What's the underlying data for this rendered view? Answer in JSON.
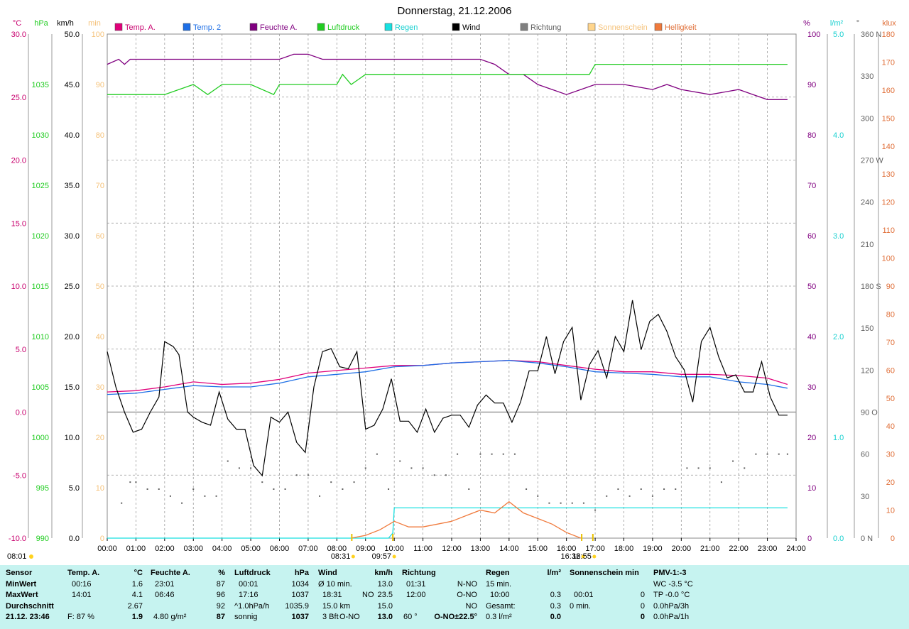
{
  "title": "Donnerstag, 21.12.2006",
  "legend": [
    {
      "label": "Temp. A.",
      "color": "#e0007a",
      "text_color": "#c8006e"
    },
    {
      "label": "Temp. 2",
      "color": "#1e6fe6",
      "text_color": "#1e6fe6"
    },
    {
      "label": "Feuchte A.",
      "color": "#800080",
      "text_color": "#800080"
    },
    {
      "label": "Luftdruck",
      "color": "#22cc22",
      "text_color": "#22cc22"
    },
    {
      "label": "Regen",
      "color": "#18e0e0",
      "text_color": "#18d0d0"
    },
    {
      "label": "Wind",
      "color": "#000000",
      "text_color": "#000000"
    },
    {
      "label": "Richtung",
      "color": "#808080",
      "text_color": "#606060"
    },
    {
      "label": "Sonnenschein",
      "color": "#ffd58c",
      "text_color": "#f5c27a"
    },
    {
      "label": "Helligkeit",
      "color": "#f07a3c",
      "text_color": "#e0703a"
    }
  ],
  "axes_left": [
    {
      "unit": "°C",
      "color": "#c8006e",
      "ticks": [
        "30.0",
        "25.0",
        "20.0",
        "15.0",
        "10.0",
        "5.0",
        "0.0",
        "-5.0",
        "-10.0"
      ]
    },
    {
      "unit": "hPa",
      "color": "#22cc22",
      "ticks": [
        "1035",
        "1030",
        "1025",
        "1020",
        "1015",
        "1010",
        "1005",
        "1000",
        "995",
        "990"
      ]
    },
    {
      "unit": "km/h",
      "color": "#000000",
      "ticks": [
        "50.0",
        "45.0",
        "40.0",
        "35.0",
        "30.0",
        "25.0",
        "20.0",
        "15.0",
        "10.0",
        "5.0",
        "0.0"
      ]
    },
    {
      "unit": "min",
      "color": "#f5c27a",
      "ticks": [
        "100",
        "90",
        "80",
        "70",
        "60",
        "50",
        "40",
        "30",
        "20",
        "10",
        "0"
      ]
    }
  ],
  "axes_right": [
    {
      "unit": "%",
      "color": "#800080",
      "ticks": [
        "100",
        "90",
        "80",
        "70",
        "60",
        "50",
        "40",
        "30",
        "20",
        "10",
        "0"
      ]
    },
    {
      "unit": "l/m²",
      "color": "#18d0d0",
      "ticks": [
        "5.0",
        "4.0",
        "3.0",
        "2.0",
        "1.0",
        "0.0"
      ]
    },
    {
      "unit": "°",
      "color": "#606060",
      "ticks": [
        "360 N",
        "330",
        "300",
        "270 W",
        "240",
        "210",
        "180 S",
        "150",
        "120",
        "90 O",
        "60",
        "30",
        "0 N"
      ]
    },
    {
      "unit": "klux",
      "color": "#e0703a",
      "ticks": [
        "180",
        "170",
        "160",
        "150",
        "140",
        "130",
        "120",
        "110",
        "100",
        "90",
        "80",
        "70",
        "60",
        "50",
        "40",
        "30",
        "20",
        "10",
        "0"
      ]
    }
  ],
  "x_ticks": [
    "00:00",
    "01:00",
    "02:00",
    "03:00",
    "04:00",
    "05:00",
    "06:00",
    "07:00",
    "08:00",
    "09:00",
    "10:00",
    "11:00",
    "12:00",
    "13:00",
    "14:00",
    "15:00",
    "16:00",
    "17:00",
    "18:00",
    "19:00",
    "20:00",
    "21:00",
    "22:00",
    "23:00",
    "24:00"
  ],
  "sun_events": [
    {
      "label": "08:01",
      "hour": 8.02,
      "row": "left"
    },
    {
      "label": "08:31",
      "hour": 8.52,
      "row": "low"
    },
    {
      "label": "09:57",
      "hour": 9.95,
      "row": "low"
    },
    {
      "label": "16:32",
      "hour": 16.53,
      "row": "low"
    },
    {
      "label": "16:55",
      "hour": 16.92,
      "row": "low"
    }
  ],
  "chart_data": {
    "type": "line",
    "x_unit": "hour of day",
    "xlim": [
      0,
      24
    ],
    "series": [
      {
        "name": "Temp. A.",
        "axis": "°C",
        "ylim": [
          -10,
          30
        ],
        "x": [
          0,
          1,
          2,
          3,
          4,
          5,
          6,
          7,
          8,
          9,
          10,
          11,
          12,
          13,
          14,
          15,
          16,
          17,
          18,
          19,
          20,
          21,
          22,
          23,
          23.7
        ],
        "values": [
          1.6,
          1.7,
          2.0,
          2.4,
          2.2,
          2.3,
          2.6,
          3.1,
          3.3,
          3.5,
          3.7,
          3.7,
          3.9,
          4.0,
          4.1,
          4.0,
          3.7,
          3.4,
          3.2,
          3.2,
          3.0,
          3.0,
          2.9,
          2.7,
          2.2
        ]
      },
      {
        "name": "Temp. 2",
        "axis": "°C",
        "ylim": [
          -10,
          30
        ],
        "x": [
          0,
          1,
          2,
          3,
          4,
          5,
          6,
          7,
          8,
          9,
          10,
          11,
          12,
          13,
          14,
          15,
          16,
          17,
          18,
          19,
          20,
          21,
          22,
          23,
          23.7
        ],
        "values": [
          1.4,
          1.5,
          1.8,
          2.1,
          2.0,
          2.0,
          2.3,
          2.8,
          3.0,
          3.2,
          3.6,
          3.7,
          3.9,
          4.0,
          4.1,
          3.9,
          3.6,
          3.2,
          3.1,
          3.0,
          2.8,
          2.8,
          2.4,
          2.2,
          1.9
        ]
      },
      {
        "name": "Feuchte A.",
        "axis": "%",
        "ylim": [
          0,
          100
        ],
        "x": [
          0,
          0.4,
          0.6,
          0.8,
          1,
          2,
          3,
          4,
          5,
          6,
          6.5,
          7,
          7.5,
          8,
          9,
          10,
          11,
          12,
          13,
          13.5,
          14,
          14.5,
          15,
          15.5,
          16,
          16.5,
          17,
          18,
          19,
          19.5,
          20,
          21,
          22,
          22.5,
          23,
          23.7
        ],
        "values": [
          94,
          95,
          94,
          95,
          95,
          95,
          95,
          95,
          95,
          95,
          96,
          96,
          95,
          95,
          95,
          95,
          95,
          95,
          95,
          94,
          92,
          92,
          90,
          89,
          88,
          89,
          90,
          90,
          89,
          90,
          89,
          88,
          89,
          88,
          87,
          87
        ]
      },
      {
        "name": "Luftdruck",
        "axis": "hPa",
        "ylim": [
          990,
          1040
        ],
        "x": [
          0,
          2,
          3,
          3.5,
          4,
          4.5,
          5,
          5.8,
          6,
          6.5,
          7,
          8,
          8.2,
          8.5,
          9,
          10,
          11,
          12,
          13,
          14,
          15,
          16,
          16.5,
          16.8,
          17,
          18,
          19,
          20,
          21,
          22,
          23,
          23.7
        ],
        "values": [
          1034,
          1034,
          1035,
          1034,
          1035,
          1035,
          1035,
          1034,
          1035,
          1035,
          1035,
          1035,
          1036,
          1035,
          1036,
          1036,
          1036,
          1036,
          1036,
          1036,
          1036,
          1036,
          1036,
          1036,
          1037,
          1037,
          1037,
          1037,
          1037,
          1037,
          1037,
          1037
        ]
      },
      {
        "name": "Wind",
        "axis": "km/h",
        "ylim": [
          0,
          50
        ],
        "x": [
          0,
          0.3,
          0.6,
          0.9,
          1.2,
          1.5,
          1.8,
          2.0,
          2.3,
          2.5,
          2.8,
          3.0,
          3.3,
          3.6,
          3.9,
          4.2,
          4.5,
          4.8,
          5.1,
          5.4,
          5.7,
          6.0,
          6.3,
          6.6,
          6.9,
          7.2,
          7.5,
          7.8,
          8.1,
          8.4,
          8.7,
          9.0,
          9.3,
          9.6,
          9.9,
          10.2,
          10.5,
          10.8,
          11.1,
          11.4,
          11.7,
          12.0,
          12.3,
          12.6,
          12.9,
          13.2,
          13.5,
          13.8,
          14.1,
          14.4,
          14.7,
          15.0,
          15.3,
          15.6,
          15.9,
          16.2,
          16.5,
          16.8,
          17.1,
          17.4,
          17.7,
          18.0,
          18.3,
          18.6,
          18.9,
          19.2,
          19.5,
          19.8,
          20.1,
          20.4,
          20.7,
          21.0,
          21.3,
          21.6,
          21.9,
          22.2,
          22.5,
          22.8,
          23.1,
          23.4,
          23.7
        ],
        "values": [
          18.5,
          15,
          12.5,
          10.5,
          10.8,
          12.5,
          14,
          19.5,
          19,
          18.2,
          12.5,
          12,
          11.5,
          11.2,
          14.5,
          11.8,
          10.8,
          10.8,
          7.2,
          6.2,
          12,
          11.5,
          12.5,
          9.5,
          8.5,
          15,
          18.5,
          18.8,
          17,
          16.8,
          18.5,
          10.8,
          11.2,
          12.8,
          15.8,
          11.6,
          11.6,
          10.5,
          12.8,
          10.5,
          11.9,
          12.2,
          12.2,
          11.0,
          13.2,
          14.2,
          13.4,
          13.4,
          11.5,
          13.5,
          16.6,
          16.6,
          20,
          16.3,
          19.5,
          20.9,
          13.7,
          17.2,
          18.6,
          15.9,
          20,
          18.5,
          23.6,
          18.7,
          21.5,
          22.2,
          20.5,
          18,
          16.7,
          13.5,
          19.5,
          20.9,
          18,
          15.9,
          16.2,
          14.5,
          14.5,
          17.5,
          14,
          12.2,
          12.2
        ]
      },
      {
        "name": "Regen",
        "axis": "l/m²",
        "ylim": [
          0,
          5
        ],
        "x": [
          0,
          9.8,
          9.95,
          10.0,
          10.1,
          23.7
        ],
        "values": [
          0,
          0,
          0.05,
          0.3,
          0.3,
          0.3
        ]
      },
      {
        "name": "Helligkeit",
        "axis": "klux",
        "ylim": [
          0,
          180
        ],
        "x": [
          8.5,
          9,
          9.5,
          10,
          10.5,
          11,
          11.5,
          12,
          12.5,
          13,
          13.5,
          14,
          14.5,
          15,
          15.5,
          16,
          16.5
        ],
        "values": [
          0,
          1,
          3,
          6,
          4,
          4,
          5,
          6,
          8,
          10,
          9,
          13,
          9,
          7,
          5,
          2,
          0
        ]
      },
      {
        "name": "Richtung",
        "axis": "°",
        "ylim": [
          0,
          360
        ],
        "style": "dots",
        "x": [
          0.5,
          0.8,
          1.0,
          1.4,
          1.8,
          2.2,
          2.6,
          3.0,
          3.4,
          3.8,
          4.2,
          4.6,
          5.0,
          5.4,
          5.8,
          6.2,
          6.6,
          7.0,
          7.4,
          7.8,
          8.2,
          8.6,
          9.0,
          9.4,
          9.8,
          10.2,
          10.6,
          11.0,
          11.4,
          11.8,
          12.2,
          12.6,
          13.0,
          13.4,
          13.8,
          14.2,
          14.6,
          15.0,
          15.4,
          15.8,
          16.2,
          16.6,
          17.0,
          17.4,
          17.8,
          18.2,
          18.6,
          19.0,
          19.4,
          19.8,
          20.2,
          20.6,
          21.0,
          21.4,
          21.8,
          22.2,
          22.6,
          23.0,
          23.4,
          23.7
        ],
        "values": [
          25,
          40,
          40,
          35,
          35,
          30,
          25,
          35,
          30,
          30,
          55,
          50,
          50,
          40,
          35,
          35,
          45,
          45,
          30,
          40,
          35,
          40,
          50,
          60,
          35,
          55,
          50,
          50,
          45,
          45,
          60,
          35,
          60,
          60,
          60,
          60,
          35,
          30,
          25,
          25,
          25,
          25,
          20,
          30,
          35,
          30,
          35,
          30,
          35,
          35,
          50,
          50,
          50,
          40,
          55,
          50,
          60,
          60,
          60,
          60
        ]
      }
    ]
  },
  "stats": {
    "sensor": {
      "header": "Sensor",
      "rows": [
        "MinWert",
        "MaxWert",
        "Durchschnitt",
        "21.12. 23:46"
      ]
    },
    "temp": {
      "header": "Temp. A.",
      "unit": "°C",
      "rows": [
        [
          "00:16",
          "1.6"
        ],
        [
          "14:01",
          "4.1"
        ],
        [
          "",
          "2.67"
        ],
        [
          "F: 87 %",
          "1.9"
        ]
      ]
    },
    "feuchte": {
      "header": "Feuchte A.",
      "unit": "%",
      "rows": [
        [
          "23:01",
          "87"
        ],
        [
          "06:46",
          "96"
        ],
        [
          "",
          "92"
        ],
        [
          "4.80 g/m²",
          "87"
        ]
      ]
    },
    "luftdruck": {
      "header": "Luftdruck",
      "unit": "hPa",
      "rows": [
        [
          "00:01",
          "1034"
        ],
        [
          "17:16",
          "1037"
        ],
        [
          "^1.0hPa/h",
          "1035.9"
        ],
        [
          "sonnig",
          "1037"
        ]
      ]
    },
    "wind": {
      "header": "Wind",
      "unit": "km/h",
      "rows": [
        [
          "Ø 10 min.",
          "",
          "13.0"
        ],
        [
          "18:31",
          "NO",
          "23.5"
        ],
        [
          "15.0 km",
          "",
          "15.0"
        ],
        [
          "3 Bft",
          "O-NO",
          "13.0"
        ]
      ]
    },
    "richtung": {
      "header": "Richtung",
      "rows": [
        [
          "01:31",
          "N-NO"
        ],
        [
          "12:00",
          "O-NO"
        ],
        [
          "",
          "NO"
        ],
        [
          "60 °",
          "O-NO±22.5°"
        ]
      ]
    },
    "regen": {
      "header": "Regen",
      "unit": "l/m²",
      "rows": [
        [
          "15 min.",
          ""
        ],
        [
          "10:00",
          "0.3"
        ],
        [
          "Gesamt:",
          "0.3"
        ],
        [
          "0.3 l/m²",
          "0.0"
        ]
      ]
    },
    "sonne": {
      "header": "Sonnenschein min",
      "rows": [
        [
          "",
          ""
        ],
        [
          "00:01",
          "0"
        ],
        [
          "0 min.",
          "0"
        ],
        [
          "",
          "0"
        ]
      ]
    },
    "pmv": {
      "header": "PMV-1:-3",
      "rows": [
        "WC -3.5 °C",
        "TP -0.0 °C",
        "0.0hPa/3h",
        "0.0hPa/1h"
      ]
    }
  }
}
